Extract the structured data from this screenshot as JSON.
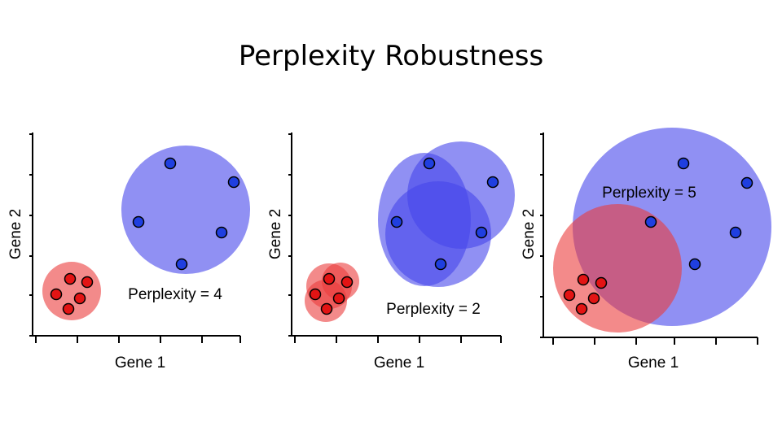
{
  "title": "Perplexity Robustness",
  "panels": [
    {
      "x_label": "Gene 1",
      "y_label": "Gene 2",
      "annotation": "Perplexity = 4"
    },
    {
      "x_label": "Gene 1",
      "y_label": "Gene 2",
      "annotation": "Perplexity = 2"
    },
    {
      "x_label": "Gene 1",
      "y_label": "Gene 2",
      "annotation": "Perplexity = 5"
    }
  ]
}
